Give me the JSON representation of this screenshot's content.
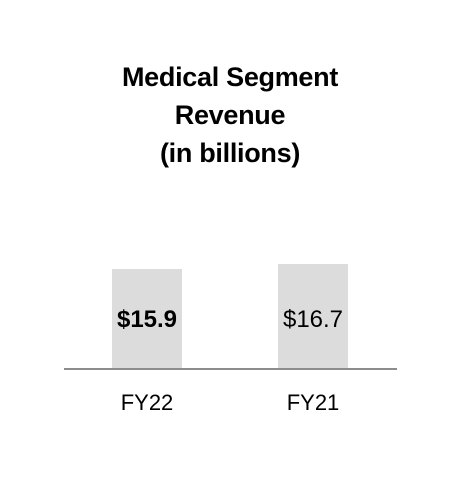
{
  "chart_data": {
    "type": "bar",
    "title_lines": [
      "Medical Segment",
      "Revenue",
      "(in billions)"
    ],
    "categories": [
      "FY22",
      "FY21"
    ],
    "values": [
      15.9,
      16.7
    ],
    "data_labels": [
      "$15.9",
      "$16.7"
    ],
    "data_label_bold": [
      true,
      false
    ],
    "bar_color": "#dcdcdc",
    "axis_color": "#8c8c8c",
    "ylim": [
      0,
      16.7
    ],
    "grid": false,
    "legend": "none",
    "xlabel": "",
    "ylabel": ""
  }
}
